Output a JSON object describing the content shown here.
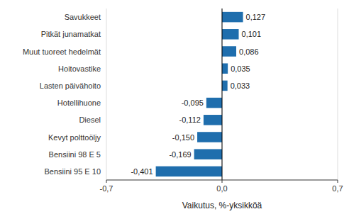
{
  "chart_data": {
    "type": "bar",
    "orientation": "horizontal",
    "categories": [
      "Bensiini 95 E 10",
      "Bensiini 98 E 5",
      "Kevyt polttoöljy",
      "Diesel",
      "Hotellihuone",
      "Lasten päivähoito",
      "Hoitovastike",
      "Muut tuoreet hedelmät",
      "Pitkät junamatkat",
      "Savukkeet"
    ],
    "values": [
      -0.401,
      -0.169,
      -0.15,
      -0.112,
      -0.095,
      0.033,
      0.035,
      0.086,
      0.101,
      0.127
    ],
    "value_labels": [
      "-0,401",
      "-0,169",
      "-0,150",
      "-0,112",
      "-0,095",
      "0,033",
      "0,035",
      "0,086",
      "0,101",
      "0,127"
    ],
    "data_labels": true,
    "color": "#1F6EAD",
    "xlabel": "Vaikutus, %-yksikköä",
    "xlim": [
      -0.7,
      0.7
    ],
    "xticks": [
      {
        "value": -0.7,
        "label": "-0,7"
      },
      {
        "value": 0.0,
        "label": "0,0"
      },
      {
        "value": 0.7,
        "label": "0,7"
      }
    ],
    "grid": true
  }
}
